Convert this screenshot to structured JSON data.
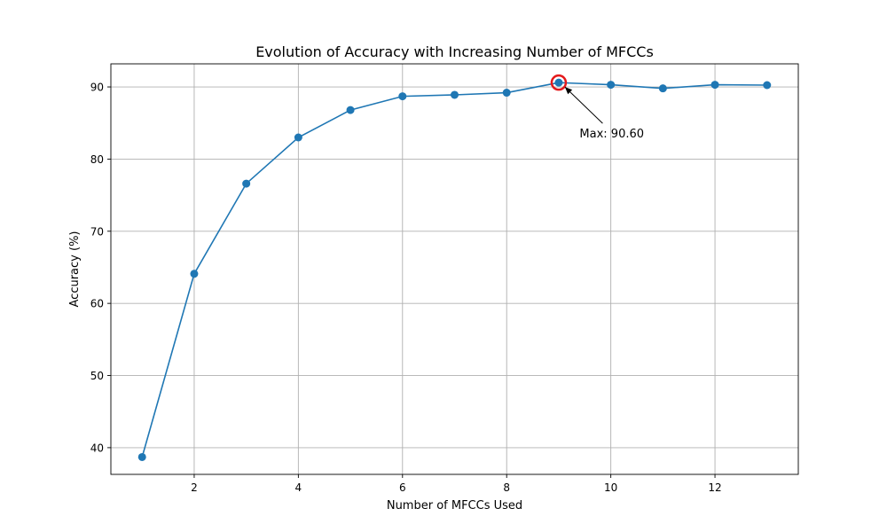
{
  "chart_data": {
    "type": "line",
    "title": "Evolution of Accuracy with Increasing Number of MFCCs",
    "xlabel": "Number of MFCCs Used",
    "ylabel": "Accuracy (%)",
    "xlim": [
      0.4,
      13.6
    ],
    "ylim": [
      36.3,
      93.2
    ],
    "xticks": [
      2,
      4,
      6,
      8,
      10,
      12
    ],
    "yticks": [
      40,
      50,
      60,
      70,
      80,
      90
    ],
    "grid": true,
    "series": [
      {
        "name": "",
        "color": "#1f77b4",
        "marker": "circle",
        "x": [
          1,
          2,
          3,
          4,
          5,
          6,
          7,
          8,
          9,
          10,
          11,
          12,
          13
        ],
        "y": [
          38.7,
          64.1,
          76.6,
          83.0,
          86.8,
          88.7,
          88.9,
          89.2,
          90.6,
          90.3,
          89.8,
          90.3,
          90.25
        ]
      }
    ],
    "highlight": {
      "x": 9,
      "y": 90.6,
      "color": "#e41a1c"
    },
    "annotation": {
      "text": "Max: 90.60",
      "x": 9,
      "y": 90.6,
      "text_x": 9.4,
      "text_y": 83.6
    }
  }
}
